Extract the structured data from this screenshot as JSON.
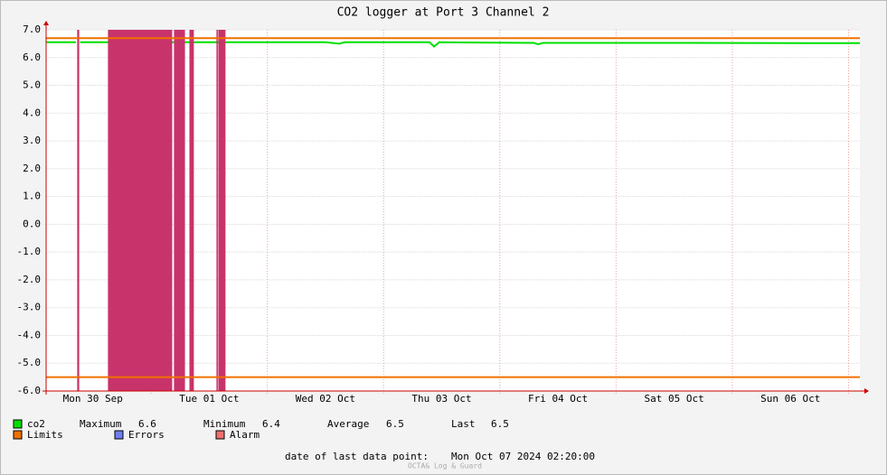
{
  "chart_data": {
    "type": "line",
    "title": "CO2 logger at Port 3 Channel 2",
    "xlim": [
      "2024-09-30T02:20",
      "2024-10-07T02:20"
    ],
    "xticks": [
      {
        "value": "2024-09-30T12:00",
        "label": "Mon 30 Sep"
      },
      {
        "value": "2024-10-01T12:00",
        "label": "Tue 01 Oct"
      },
      {
        "value": "2024-10-02T12:00",
        "label": "Wed 02 Oct"
      },
      {
        "value": "2024-10-03T12:00",
        "label": "Thu 03 Oct"
      },
      {
        "value": "2024-10-04T12:00",
        "label": "Fri 04 Oct"
      },
      {
        "value": "2024-10-05T12:00",
        "label": "Sat 05 Oct"
      },
      {
        "value": "2024-10-06T12:00",
        "label": "Sun 06 Oct"
      }
    ],
    "ylim": [
      -6,
      7
    ],
    "yticks": [
      {
        "value": 7,
        "label": "7.0"
      },
      {
        "value": 6,
        "label": "6.0"
      },
      {
        "value": 5,
        "label": "5.0"
      },
      {
        "value": 4,
        "label": "4.0"
      },
      {
        "value": 3,
        "label": "3.0"
      },
      {
        "value": 2,
        "label": "2.0"
      },
      {
        "value": 1,
        "label": "1.0"
      },
      {
        "value": 0,
        "label": "0.0"
      },
      {
        "value": -1,
        "label": "-1.0"
      },
      {
        "value": -2,
        "label": "-2.0"
      },
      {
        "value": -3,
        "label": "-3.0"
      },
      {
        "value": -4,
        "label": "-4.0"
      },
      {
        "value": -5,
        "label": "-5.0"
      },
      {
        "value": -6,
        "label": "-6.0"
      }
    ],
    "grid": true,
    "x": [
      "2024-09-30T02:20",
      "2024-09-30T08:30",
      "2024-09-30T08:50",
      "2024-09-30T09:20",
      "2024-09-30T16:00",
      "2024-10-01T16:00",
      "2024-10-02T12:00",
      "2024-10-02T14:50",
      "2024-10-02T16:00",
      "2024-10-03T09:30",
      "2024-10-03T10:25",
      "2024-10-03T11:30",
      "2024-10-04T07:00",
      "2024-10-04T07:55",
      "2024-10-04T09:00",
      "2024-10-05T12:00",
      "2024-10-07T02:20"
    ],
    "series": [
      {
        "name": "co2",
        "color": "#00e000",
        "values": [
          6.55,
          6.55,
          null,
          6.55,
          6.55,
          6.55,
          6.55,
          6.5,
          6.55,
          6.55,
          6.4,
          6.55,
          6.53,
          6.48,
          6.53,
          6.53,
          6.52
        ]
      }
    ],
    "limits": {
      "name": "Limits",
      "color": "#f07000",
      "values": [
        6.7,
        -5.5
      ]
    },
    "errors": {
      "name": "Errors",
      "color": "#6f7ff0"
    },
    "alarm": {
      "name": "Alarm",
      "color": "#c8336b",
      "legend_color": "#f07070",
      "periods": [
        [
          "2024-09-30T08:45",
          "2024-09-30T09:10"
        ],
        [
          "2024-09-30T15:06",
          "2024-10-01T04:22"
        ],
        [
          "2024-10-01T04:44",
          "2024-10-01T07:00"
        ],
        [
          "2024-10-01T07:55",
          "2024-10-01T08:50"
        ],
        [
          "2024-10-01T13:30",
          "2024-10-01T13:47"
        ],
        [
          "2024-10-01T13:53",
          "2024-10-01T15:22"
        ]
      ]
    },
    "stats": [
      {
        "label": "Maximum",
        "value": 6.6
      },
      {
        "label": "Minimum",
        "value": 6.4
      },
      {
        "label": "Average",
        "value": 6.5
      },
      {
        "label": "Last",
        "value": 6.5
      }
    ],
    "footer_label": "date of last data point:",
    "footer_value": "Mon Oct 07 2024 02:20:00",
    "watermark": "OCTA& Log & Guard"
  }
}
